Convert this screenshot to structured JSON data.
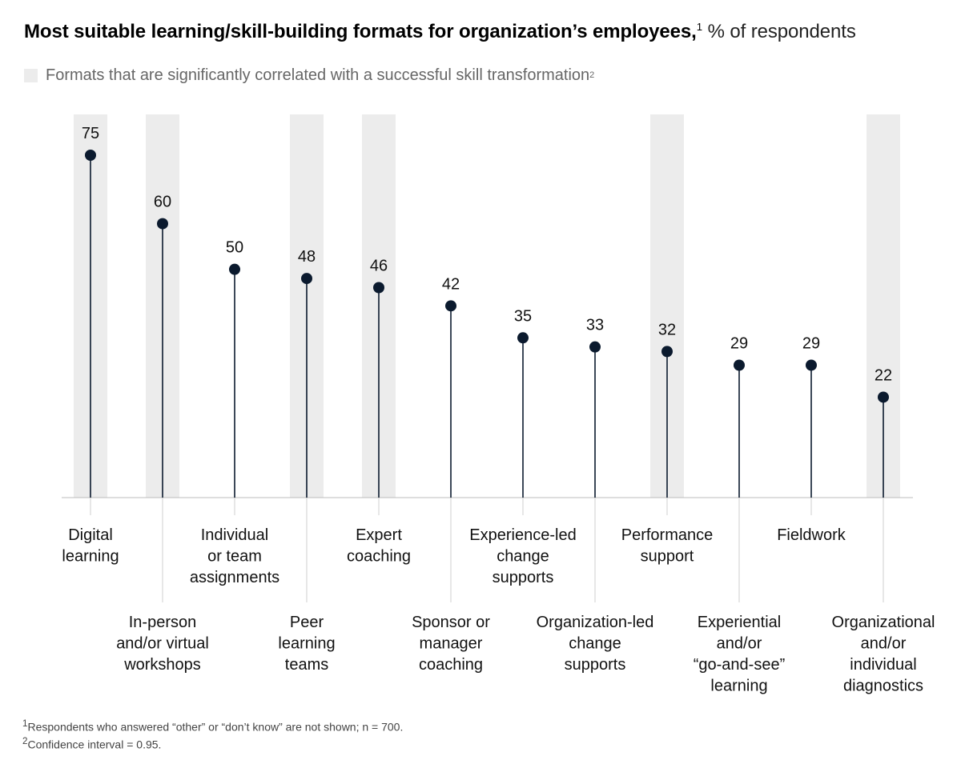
{
  "title": {
    "main": "Most suitable learning/skill-building formats for organization’s employees,",
    "main_sup": "1",
    "unit": "% of respondents"
  },
  "legend": {
    "label": "Formats that are significantly correlated with a successful skill transformation",
    "sup": "2"
  },
  "colors": {
    "dot": "#0b1a2e",
    "stem": "#0b1a2e",
    "highlight": "#ececec",
    "axis": "#bdbdbd",
    "leader": "#cfcfcf"
  },
  "chart_data": {
    "type": "lollipop",
    "categories": [
      "Digital learning",
      "In-person and/or virtual workshops",
      "Individual or team assignments",
      "Peer learning teams",
      "Expert coaching",
      "Sponsor or manager coaching",
      "Experience-led change supports",
      "Organization-led change supports",
      "Performance support",
      "Experiential and/or “go-and-see” learning",
      "Fieldwork",
      "Organizational and/or individual diagnostics"
    ],
    "label_lines": [
      [
        "Digital",
        "learning"
      ],
      [
        "In-person",
        "and/or virtual",
        "workshops"
      ],
      [
        "Individual",
        "or team",
        "assignments"
      ],
      [
        "Peer",
        "learning",
        "teams"
      ],
      [
        "Expert",
        "coaching"
      ],
      [
        "Sponsor or",
        "manager",
        "coaching"
      ],
      [
        "Experience-led",
        "change",
        "supports"
      ],
      [
        "Organization-led",
        "change",
        "supports"
      ],
      [
        "Performance",
        "support"
      ],
      [
        "Experiential",
        "and/or",
        "“go-and-see”",
        "learning"
      ],
      [
        "Fieldwork"
      ],
      [
        "Organizational",
        "and/or",
        "individual",
        "diagnostics"
      ]
    ],
    "values": [
      75,
      60,
      50,
      48,
      46,
      42,
      35,
      33,
      32,
      29,
      29,
      22
    ],
    "significant": [
      true,
      true,
      false,
      true,
      true,
      false,
      false,
      false,
      true,
      false,
      false,
      true
    ],
    "ylim": [
      0,
      75
    ]
  },
  "footnotes": [
    {
      "sup": "1",
      "text": "Respondents who answered “other” or “don’t know” are not shown; n = 700."
    },
    {
      "sup": "2",
      "text": "Confidence interval = 0.95."
    }
  ]
}
